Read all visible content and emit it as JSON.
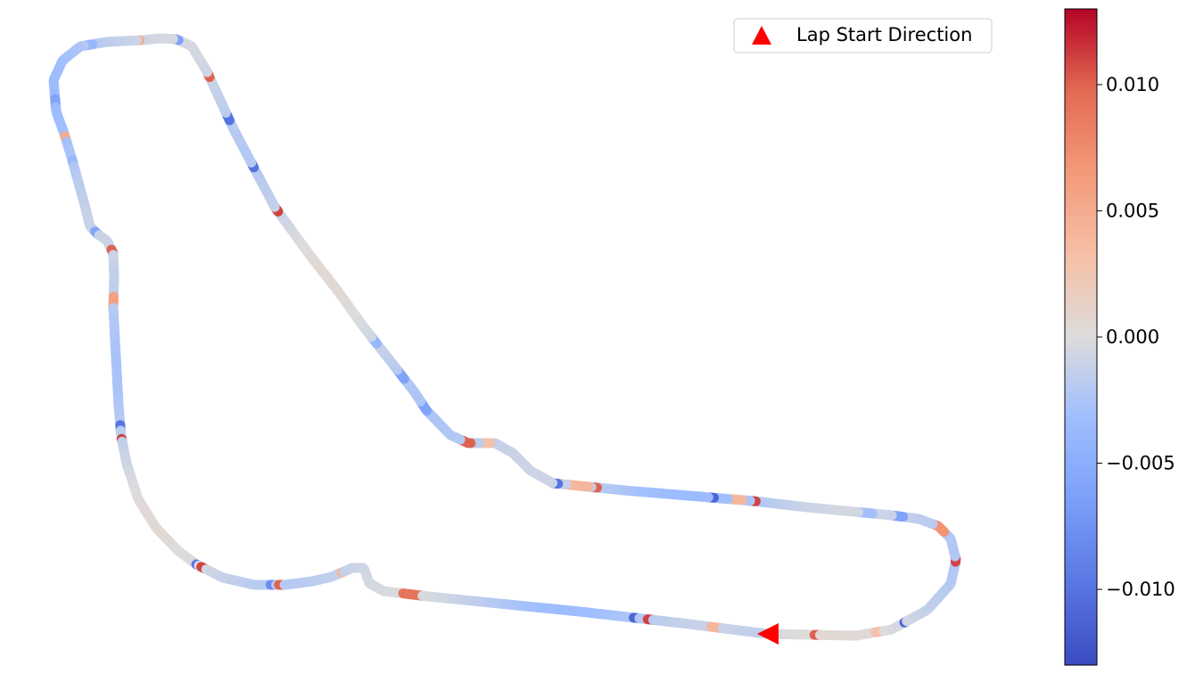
{
  "chart_data": {
    "type": "track-map",
    "legend": {
      "label": "Lap Start Direction",
      "marker": "triangle",
      "marker_color": "#ff0000",
      "placement": "upper right"
    },
    "colormap": "coolwarm",
    "colorbar": {
      "range": [
        -0.013,
        0.013
      ],
      "ticks": [
        {
          "value": 0.01,
          "label": "0.010"
        },
        {
          "value": 0.005,
          "label": "0.005"
        },
        {
          "value": 0.0,
          "label": "0.000"
        },
        {
          "value": -0.005,
          "label": "−0.005"
        },
        {
          "value": -0.01,
          "label": "−0.010"
        }
      ]
    },
    "track_waypoints": [
      [
        860,
        711
      ],
      [
        960,
        713
      ],
      [
        1000,
        706
      ],
      [
        1040,
        684
      ],
      [
        1066,
        655
      ],
      [
        1072,
        628
      ],
      [
        1066,
        604
      ],
      [
        1052,
        590
      ],
      [
        1030,
        582
      ],
      [
        1000,
        578
      ],
      [
        905,
        569
      ],
      [
        845,
        562
      ],
      [
        700,
        550
      ],
      [
        620,
        542
      ],
      [
        595,
        528
      ],
      [
        575,
        508
      ],
      [
        555,
        497
      ],
      [
        525,
        497
      ],
      [
        505,
        488
      ],
      [
        478,
        460
      ],
      [
        465,
        440
      ],
      [
        405,
        363
      ],
      [
        380,
        328
      ],
      [
        345,
        283
      ],
      [
        308,
        232
      ],
      [
        290,
        198
      ],
      [
        262,
        145
      ],
      [
        232,
        80
      ],
      [
        215,
        52
      ],
      [
        198,
        44
      ],
      [
        180,
        43
      ],
      [
        160,
        45
      ],
      [
        120,
        47
      ],
      [
        90,
        52
      ],
      [
        70,
        68
      ],
      [
        60,
        90
      ],
      [
        63,
        125
      ],
      [
        72,
        150
      ],
      [
        80,
        176
      ],
      [
        88,
        205
      ],
      [
        95,
        230
      ],
      [
        101,
        254
      ],
      [
        110,
        263
      ],
      [
        120,
        270
      ],
      [
        127,
        284
      ],
      [
        128,
        310
      ],
      [
        127,
        345
      ],
      [
        130,
        400
      ],
      [
        133,
        455
      ],
      [
        136,
        490
      ],
      [
        142,
        520
      ],
      [
        155,
        560
      ],
      [
        175,
        592
      ],
      [
        200,
        618
      ],
      [
        220,
        633
      ],
      [
        250,
        648
      ],
      [
        285,
        656
      ],
      [
        320,
        656
      ],
      [
        350,
        652
      ],
      [
        372,
        647
      ],
      [
        395,
        637
      ],
      [
        408,
        637
      ],
      [
        414,
        654
      ],
      [
        430,
        663
      ],
      [
        480,
        669
      ],
      [
        550,
        676
      ],
      [
        650,
        686
      ],
      [
        765,
        699
      ],
      [
        860,
        711
      ]
    ],
    "start_marker": {
      "position_index": 0,
      "direction": "left"
    },
    "highlights": [
      {
        "at": 0.02,
        "width": 0.002,
        "value": 0.01
      },
      {
        "at": 0.045,
        "width": 0.004,
        "value": 0.003
      },
      {
        "at": 0.056,
        "width": 0.002,
        "value": -0.011
      },
      {
        "at": 0.09,
        "width": 0.003,
        "value": 0.011
      },
      {
        "at": 0.105,
        "width": 0.005,
        "value": 0.007
      },
      {
        "at": 0.122,
        "width": 0.004,
        "value": -0.006
      },
      {
        "at": 0.135,
        "width": 0.006,
        "value": -0.003
      },
      {
        "at": 0.18,
        "width": 0.002,
        "value": 0.011
      },
      {
        "at": 0.187,
        "width": 0.006,
        "value": 0.004
      },
      {
        "at": 0.197,
        "width": 0.002,
        "value": -0.011
      },
      {
        "at": 0.243,
        "width": 0.002,
        "value": 0.01
      },
      {
        "at": 0.25,
        "width": 0.008,
        "value": 0.004
      },
      {
        "at": 0.259,
        "width": 0.002,
        "value": -0.01
      },
      {
        "at": 0.292,
        "width": 0.004,
        "value": 0.003
      },
      {
        "at": 0.3,
        "width": 0.005,
        "value": 0.01
      },
      {
        "at": 0.322,
        "width": 0.004,
        "value": -0.006
      },
      {
        "at": 0.338,
        "width": 0.004,
        "value": -0.006
      },
      {
        "at": 0.355,
        "width": 0.003,
        "value": -0.004
      },
      {
        "at": 0.42,
        "width": 0.002,
        "value": 0.011
      },
      {
        "at": 0.44,
        "width": 0.002,
        "value": -0.01
      },
      {
        "at": 0.462,
        "width": 0.003,
        "value": -0.01
      },
      {
        "at": 0.48,
        "width": 0.003,
        "value": 0.01
      },
      {
        "at": 0.5,
        "width": 0.002,
        "value": -0.006
      },
      {
        "at": 0.515,
        "width": 0.002,
        "value": 0.005
      },
      {
        "at": 0.535,
        "width": 0.003,
        "value": -0.004
      },
      {
        "at": 0.565,
        "width": 0.003,
        "value": -0.006
      },
      {
        "at": 0.58,
        "width": 0.002,
        "value": 0.005
      },
      {
        "at": 0.59,
        "width": 0.002,
        "value": -0.004
      },
      {
        "at": 0.62,
        "width": 0.003,
        "value": -0.006
      },
      {
        "at": 0.63,
        "width": 0.002,
        "value": 0.01
      },
      {
        "at": 0.65,
        "width": 0.004,
        "value": 0.006
      },
      {
        "at": 0.7,
        "width": 0.002,
        "value": -0.01
      },
      {
        "at": 0.705,
        "width": 0.002,
        "value": 0.011
      },
      {
        "at": 0.765,
        "width": 0.002,
        "value": -0.01
      },
      {
        "at": 0.768,
        "width": 0.002,
        "value": 0.011
      },
      {
        "at": 0.797,
        "width": 0.002,
        "value": -0.008
      },
      {
        "at": 0.8,
        "width": 0.002,
        "value": 0.01
      },
      {
        "at": 0.825,
        "width": 0.002,
        "value": 0.004
      },
      {
        "at": 0.858,
        "width": 0.008,
        "value": 0.009
      },
      {
        "at": 0.948,
        "width": 0.002,
        "value": -0.011
      },
      {
        "at": 0.953,
        "width": 0.002,
        "value": 0.011
      },
      {
        "at": 0.98,
        "width": 0.004,
        "value": 0.004
      }
    ]
  }
}
